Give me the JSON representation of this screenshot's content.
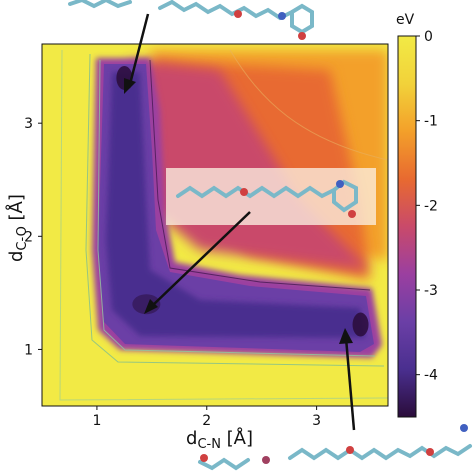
{
  "chart_data": {
    "type": "heatmap",
    "title": "",
    "xlabel_main": "d",
    "xlabel_sub": "C-N",
    "xlabel_unit": " [Å]",
    "ylabel_main": "d",
    "ylabel_sub": "C-O",
    "ylabel_unit": " [Å]",
    "xlim": [
      0.5,
      3.65
    ],
    "ylim": [
      0.5,
      3.7
    ],
    "x_ticks": [
      "1",
      "2",
      "3"
    ],
    "y_ticks": [
      "1",
      "2",
      "3"
    ],
    "colorbar": {
      "label": "eV",
      "range": [
        -4.5,
        0
      ],
      "ticks": [
        "0",
        "-1",
        "-2",
        "-3",
        "-4"
      ],
      "colormap": [
        "#2a0c3a",
        "#4a2f8f",
        "#6b3fa6",
        "#9b3fa0",
        "#c94a6a",
        "#e86a30",
        "#f3a02a",
        "#f2d23a",
        "#f2ea45"
      ]
    },
    "minima": [
      {
        "x": 1.25,
        "y": 3.4
      },
      {
        "x": 3.4,
        "y": 1.22
      },
      {
        "x": 1.45,
        "y": 1.4
      }
    ],
    "colors": {
      "background": "#f2ea45",
      "arrow": "#111111",
      "inset_box": "#fbeee0"
    }
  }
}
